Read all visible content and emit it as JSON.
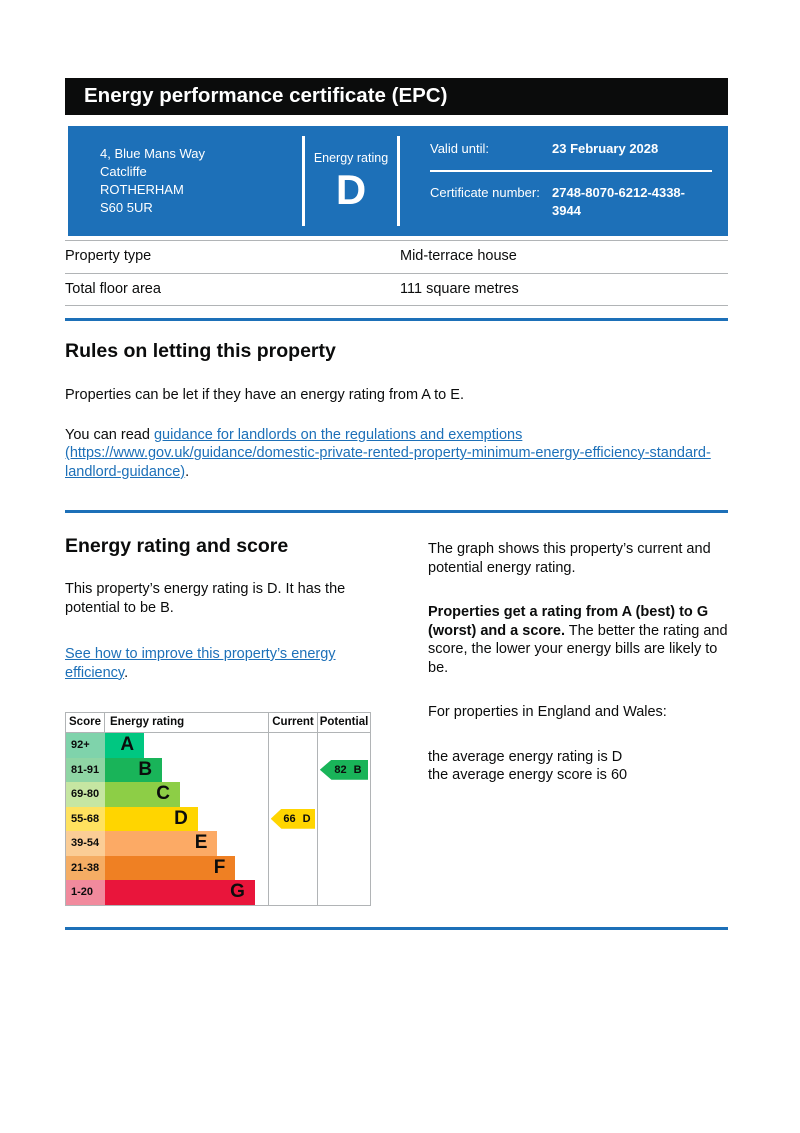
{
  "page": {
    "title": "Energy performance certificate (EPC)"
  },
  "summary": {
    "address_lines": [
      "4, Blue Mans Way",
      "Catcliffe",
      "ROTHERHAM",
      "S60 5UR"
    ],
    "energy_rating_label": "Energy rating",
    "energy_rating": "D",
    "valid_until_label": "Valid until:",
    "valid_until": "23 February 2028",
    "certificate_number_label": "Certificate number:",
    "certificate_number": "2748-8070-6212-4338-3944"
  },
  "property_details": {
    "rows": [
      {
        "label": "Property type",
        "value": "Mid-terrace house"
      },
      {
        "label": "Total floor area",
        "value": "111 square metres"
      }
    ]
  },
  "rules_section": {
    "heading": "Rules on letting this property",
    "para1": "Properties can be let if they have an energy rating from A to E.",
    "para2_prefix": "You can read ",
    "link_text": "guidance for landlords on the regulations and exemptions (https://www.gov.uk/guidance/domestic-private-rented-property-minimum-energy-efficiency-standard-landlord-guidance)",
    "para2_suffix": "."
  },
  "rating_section": {
    "heading": "Energy rating and score",
    "para1": "This property’s energy rating is D. It has the potential to be B.",
    "link_text": "See how to improve this property’s energy efficiency",
    "link_suffix": ".",
    "right_para1": "The graph shows this property’s current and potential energy rating.",
    "right_para2_bold": "Properties get a rating from A (best) to G (worst) and a score.",
    "right_para2_rest": " The better the rating and score, the lower your energy bills are likely to be.",
    "right_para3": "For properties in England and Wales:",
    "avg_rating_line": "the average energy rating is D",
    "avg_score_line": "the average energy score is 60"
  },
  "chart_data": {
    "type": "bar",
    "title": "Energy efficiency rating chart",
    "headers": {
      "score": "Score",
      "rating": "Energy rating",
      "current": "Current",
      "potential": "Potential"
    },
    "bands": [
      {
        "score": "92+",
        "letter": "A",
        "color": "#00c781",
        "tint": "#7fd3ab",
        "width_pct": 24
      },
      {
        "score": "81-91",
        "letter": "B",
        "color": "#19b459",
        "tint": "#8fd5a4",
        "width_pct": 35
      },
      {
        "score": "69-80",
        "letter": "C",
        "color": "#8dce46",
        "tint": "#c6e6a2",
        "width_pct": 46
      },
      {
        "score": "55-68",
        "letter": "D",
        "color": "#ffd500",
        "tint": "#ffe25f",
        "width_pct": 57
      },
      {
        "score": "39-54",
        "letter": "E",
        "color": "#fcaa65",
        "tint": "#fbcd96",
        "width_pct": 69
      },
      {
        "score": "21-38",
        "letter": "F",
        "color": "#ef8023",
        "tint": "#f5ad64",
        "width_pct": 80
      },
      {
        "score": "1-20",
        "letter": "G",
        "color": "#e9153b",
        "tint": "#f18a9d",
        "width_pct": 92
      }
    ],
    "current": {
      "score": 66,
      "letter": "D",
      "label": "66 D",
      "band_index": 3,
      "color": "#ffd500"
    },
    "potential": {
      "score": 82,
      "letter": "B",
      "label": "82 B",
      "band_index": 1,
      "color": "#19b459"
    }
  },
  "colors": {
    "govuk_blue": "#1d70b8",
    "header_black": "#0b0c0c",
    "border_gray": "#b1b4b6"
  }
}
